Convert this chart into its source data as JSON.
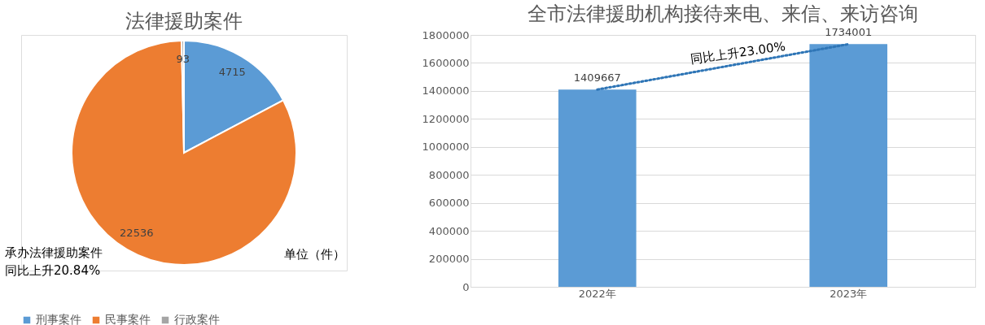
{
  "chart_data": [
    {
      "type": "pie",
      "title": "法律援助案件",
      "categories": [
        "刑事案件",
        "民事案件",
        "行政案件"
      ],
      "values": [
        4715,
        22536,
        93
      ],
      "colors": [
        "#5b9bd5",
        "#ed7d31",
        "#a5a5a5"
      ],
      "data_labels": true,
      "legend": "bottom",
      "annotations": [
        "单位（件）",
        "承办法律援助案件",
        "同比上升20.84%"
      ]
    },
    {
      "type": "bar",
      "title": "全市法律援助机构接待来电、来信、来访咨询",
      "categories": [
        "2022年",
        "2023年"
      ],
      "series": [
        {
          "type": "bar",
          "color": "#5b9bd5",
          "values": [
            1409667,
            1734001
          ]
        },
        {
          "type": "line",
          "color": "#2e75b6",
          "values": [
            1409667,
            1734001
          ],
          "value_labels": [
            null,
            null
          ],
          "line_style": "dotted",
          "marker": "none"
        }
      ],
      "ylim": [
        0,
        1800000
      ],
      "yticks": [
        0,
        200000,
        400000,
        600000,
        800000,
        1000000,
        1200000,
        1400000,
        1600000,
        1800000
      ],
      "grid": "y",
      "data_labels": true,
      "annotations": [
        "同比上升23.00%"
      ]
    }
  ]
}
